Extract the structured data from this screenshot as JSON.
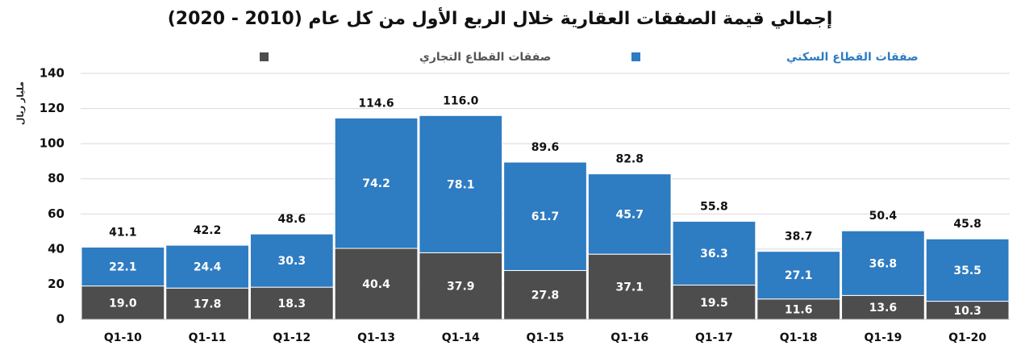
{
  "chart_data": {
    "type": "stacked-bar",
    "title": "إجمالي قيمة الصفقات العقارية خلال الربع الأول من كل عام (2010 - 2020)",
    "y_axis_label": "مليار ريال",
    "categories": [
      "Q1-10",
      "Q1-11",
      "Q1-12",
      "Q1-13",
      "Q1-14",
      "Q1-15",
      "Q1-16",
      "Q1-17",
      "Q1-18",
      "Q1-19",
      "Q1-20"
    ],
    "series": [
      {
        "name": "صفقات القطاع التجاري",
        "color": "#4d4d4d",
        "values": [
          19.0,
          17.8,
          18.3,
          40.4,
          37.9,
          27.8,
          37.1,
          19.5,
          11.6,
          13.6,
          10.3
        ],
        "value_labels": [
          "19.0",
          "17.8",
          "18.3",
          "40.4",
          "37.9",
          "27.8",
          "37.1",
          "19.5",
          "11.6",
          "13.6",
          "10.3"
        ]
      },
      {
        "name": "صفقات القطاع السكني",
        "color": "#2e7cc2",
        "values": [
          22.1,
          24.4,
          30.3,
          74.2,
          78.1,
          61.7,
          45.7,
          36.3,
          27.1,
          36.8,
          35.5
        ],
        "value_labels": [
          "22.1",
          "24.4",
          "30.3",
          "74.2",
          "78.1",
          "61.7",
          "45.7",
          "36.3",
          "27.1",
          "36.8",
          "35.5"
        ]
      }
    ],
    "totals": {
      "values": [
        41.1,
        42.2,
        48.6,
        114.6,
        116.0,
        89.6,
        82.8,
        55.8,
        38.7,
        50.4,
        45.8
      ],
      "value_labels": [
        "41.1",
        "42.2",
        "48.6",
        "114.6",
        "116.0",
        "89.6",
        "82.8",
        "55.8",
        "38.7",
        "50.4",
        "45.8"
      ]
    },
    "ylim": [
      0,
      140
    ],
    "yticks": [
      0,
      20,
      40,
      60,
      80,
      100,
      120,
      140
    ],
    "grid": true
  }
}
